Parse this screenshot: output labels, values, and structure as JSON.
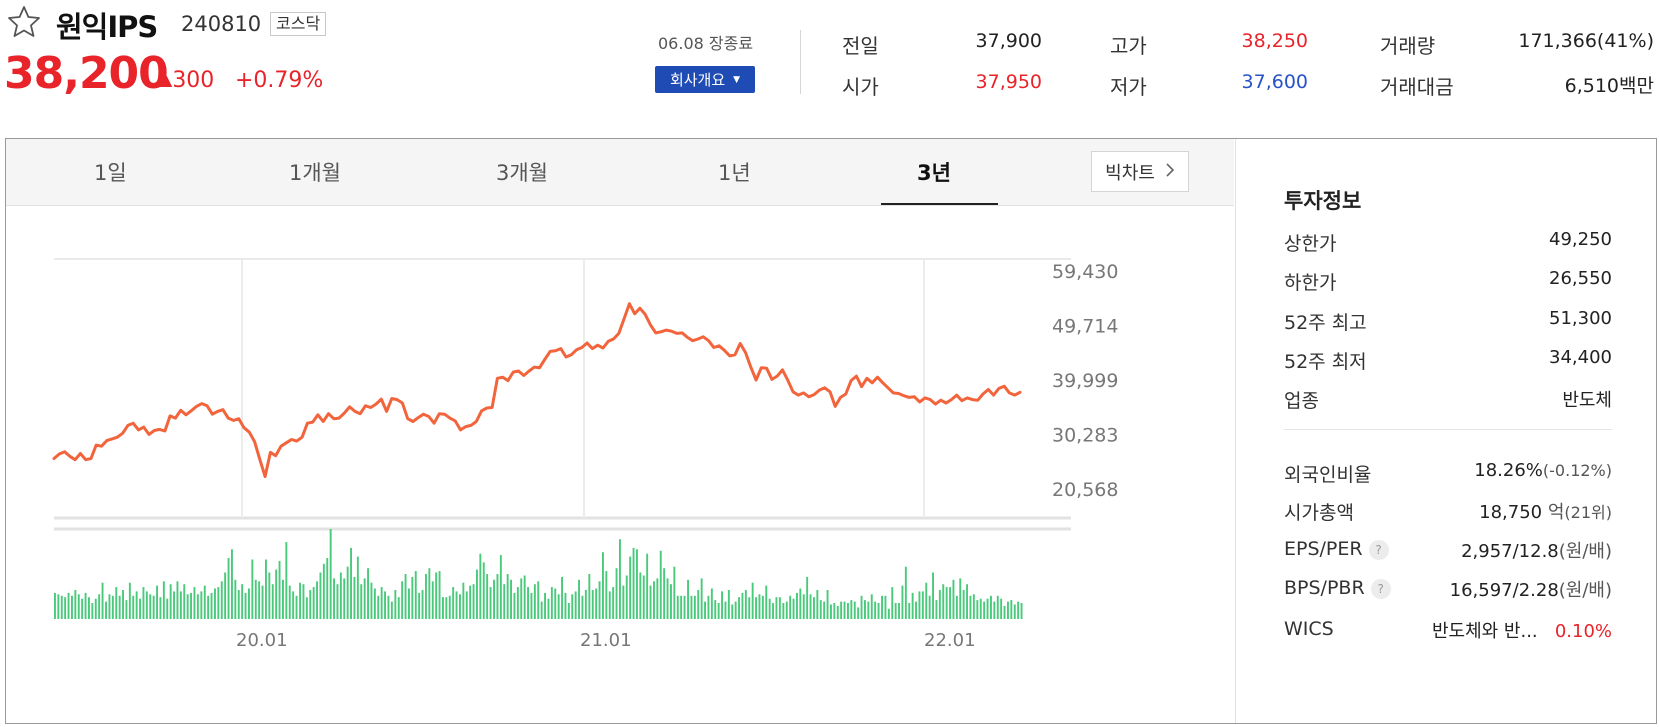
{
  "header": {
    "favorite_icon": "star-outline-icon",
    "name": "원익IPS",
    "code": "240810",
    "market": "코스닥",
    "price": "38,200",
    "change_icon": "up-triangle-icon",
    "change": "300",
    "change_pct": "+0.79%",
    "close_time": "06.08 장종료",
    "company_button": "회사개요"
  },
  "quote": {
    "prev_close_label": "전일",
    "prev_close": "37,900",
    "open_label": "시가",
    "open": "37,950",
    "high_label": "고가",
    "high": "38,250",
    "low_label": "저가",
    "low": "37,600",
    "volume_label": "거래량",
    "volume": "171,366(41%)",
    "value_label": "거래대금",
    "value": "6,510",
    "value_unit": "백만"
  },
  "chart_tabs": [
    {
      "label": "1일"
    },
    {
      "label": "1개월"
    },
    {
      "label": "3개월"
    },
    {
      "label": "1년"
    },
    {
      "label": "3년"
    }
  ],
  "active_tab": "3년",
  "big_chart_button": "빅차트",
  "chart_data": {
    "type": "line",
    "y_ticks": [
      "59,430",
      "49,714",
      "39,999",
      "30,283",
      "20,568"
    ],
    "ylim": [
      20568,
      59430
    ],
    "x_ticks": [
      "20.01",
      "21.01",
      "22.01"
    ],
    "line_color": "#f2643c",
    "volume_color": "#49c97a",
    "price_series": [
      26000,
      26800,
      27200,
      26400,
      25800,
      26900,
      25800,
      26000,
      28400,
      28200,
      29200,
      29500,
      29800,
      30500,
      31900,
      32300,
      31100,
      31600,
      30300,
      31000,
      31200,
      30900,
      33600,
      33200,
      34600,
      33800,
      34500,
      35300,
      35800,
      35400,
      33900,
      34400,
      34700,
      33200,
      32800,
      33100,
      31500,
      30700,
      29000,
      25800,
      22800,
      27100,
      26500,
      28200,
      28800,
      29400,
      29100,
      29800,
      32300,
      32500,
      33800,
      32600,
      34000,
      33100,
      33200,
      34100,
      35200,
      34400,
      34000,
      35400,
      35100,
      35700,
      36600,
      34400,
      36700,
      36500,
      35900,
      33100,
      32600,
      33300,
      33900,
      33500,
      32300,
      34000,
      33900,
      33200,
      32700,
      31100,
      31700,
      31900,
      32600,
      34500,
      35000,
      35100,
      40300,
      40500,
      39900,
      41400,
      41600,
      40800,
      41600,
      42300,
      42200,
      43700,
      45100,
      45200,
      45600,
      44100,
      44500,
      45400,
      45800,
      46600,
      45600,
      46200,
      45700,
      46900,
      47300,
      48300,
      50900,
      53600,
      51800,
      52800,
      51700,
      49800,
      48400,
      48600,
      48900,
      48700,
      48300,
      48400,
      47600,
      47000,
      47300,
      47700,
      47000,
      45800,
      46100,
      45300,
      44300,
      44500,
      46500,
      44900,
      42300,
      40000,
      42200,
      42100,
      40100,
      40700,
      41800,
      40000,
      37900,
      37300,
      37700,
      37000,
      37400,
      38200,
      38600,
      37900,
      35300,
      36900,
      37500,
      39900,
      40700,
      38800,
      40300,
      39500,
      40500,
      39500,
      38600,
      37700,
      37600,
      37200,
      36900,
      37000,
      36100,
      36800,
      36500,
      35700,
      36400,
      35900,
      36500,
      37300,
      36300,
      36800,
      36500,
      36400,
      37500,
      38300,
      37300,
      38500,
      38900,
      37700,
      37300,
      37800
    ],
    "volume_series": [
      18,
      17,
      16,
      15,
      18,
      16,
      20,
      17,
      14,
      18,
      15,
      11,
      14,
      17,
      25,
      12,
      17,
      16,
      22,
      16,
      20,
      13,
      25,
      16,
      19,
      14,
      22,
      19,
      17,
      16,
      23,
      15,
      26,
      14,
      24,
      19,
      26,
      19,
      24,
      17,
      18,
      22,
      17,
      19,
      23,
      16,
      18,
      21,
      22,
      26,
      32,
      42,
      48,
      27,
      20,
      24,
      18,
      21,
      41,
      27,
      26,
      23,
      41,
      32,
      24,
      34,
      40,
      27,
      53,
      23,
      19,
      16,
      25,
      24,
      15,
      20,
      22,
      26,
      32,
      38,
      42,
      62,
      28,
      24,
      32,
      28,
      36,
      49,
      29,
      43,
      24,
      28,
      35,
      25,
      21,
      16,
      22,
      19,
      16,
      12,
      20,
      15,
      26,
      31,
      21,
      29,
      33,
      18,
      20,
      31,
      35,
      26,
      32,
      33,
      15,
      15,
      16,
      22,
      19,
      17,
      25,
      19,
      23,
      24,
      34,
      45,
      39,
      31,
      22,
      27,
      31,
      44,
      24,
      31,
      27,
      18,
      22,
      28,
      30,
      22,
      18,
      24,
      26,
      12,
      18,
      14,
      22,
      21,
      17,
      29,
      18,
      11,
      17,
      19,
      27,
      16,
      20,
      31,
      20,
      21,
      26,
      46,
      33,
      19,
      22,
      35,
      55,
      23,
      30,
      43,
      49,
      48,
      32,
      30,
      45,
      23,
      26,
      28,
      47,
      35,
      28,
      24,
      36,
      16,
      16,
      16,
      27,
      16,
      16,
      20,
      28,
      12,
      16,
      21,
      13,
      11,
      19,
      12,
      20,
      10,
      12,
      15,
      18,
      20,
      15,
      25,
      15,
      17,
      16,
      23,
      14,
      11,
      15,
      15,
      11,
      12,
      16,
      14,
      18,
      21,
      17,
      29,
      17,
      15,
      20,
      13,
      12,
      20,
      10,
      11,
      9,
      12,
      12,
      11,
      13,
      12,
      8,
      16,
      13,
      12,
      17,
      12,
      11,
      16,
      16,
      7,
      22,
      11,
      11,
      23,
      36,
      11,
      18,
      12,
      19,
      19,
      25,
      16,
      32,
      13,
      20,
      24,
      22,
      22,
      27,
      16,
      28,
      20,
      24,
      16,
      17,
      13,
      14,
      12,
      14,
      16,
      12,
      16,
      14,
      9,
      12,
      13,
      10,
      12,
      11
    ]
  },
  "investment": {
    "title": "투자정보",
    "rows": [
      {
        "label": "상한가",
        "value": "49,250"
      },
      {
        "label": "하한가",
        "value": "26,550"
      },
      {
        "label": "52주 최고",
        "value": "51,300"
      },
      {
        "label": "52주 최저",
        "value": "34,400"
      },
      {
        "label": "업종",
        "value": "반도체"
      }
    ],
    "foreign_label": "외국인비율",
    "foreign_value": "18.26%",
    "foreign_change": "(-0.12%)",
    "cap_label": "시가총액",
    "cap_value": "18,750",
    "cap_unit": "억",
    "cap_rank": "(21위)",
    "eps_label": "EPS/PER",
    "eps_value": "2,957/12.8",
    "eps_unit": "(원/배)",
    "bps_label": "BPS/PBR",
    "bps_value": "16,597/2.28",
    "bps_unit": "(원/배)",
    "help_icon": "question-icon",
    "wics_label": "WICS",
    "wics_value": "반도체와 반...",
    "wics_pct": "0.10%"
  }
}
